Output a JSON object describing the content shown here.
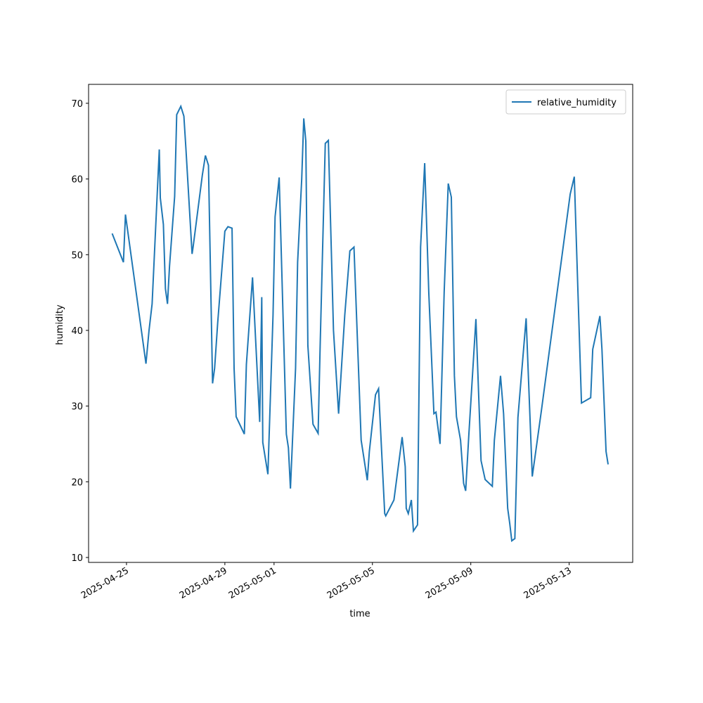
{
  "chart_data": {
    "type": "line",
    "xlabel": "time",
    "ylabel": "humidity",
    "x": [
      "2025-04-24T10:00",
      "2025-04-24T21:00",
      "2025-04-24T23:00",
      "2025-04-25T19:00",
      "2025-04-25T22:00",
      "2025-04-26T01:00",
      "2025-04-26T08:00",
      "2025-04-26T09:00",
      "2025-04-26T12:00",
      "2025-04-26T14:00",
      "2025-04-26T16:00",
      "2025-04-26T18:00",
      "2025-04-26T23:00",
      "2025-04-27T01:00",
      "2025-04-27T05:00",
      "2025-04-27T08:00",
      "2025-04-27T10:00",
      "2025-04-27T16:00",
      "2025-04-27T17:00",
      "2025-04-28T02:00",
      "2025-04-28T05:00",
      "2025-04-28T08:00",
      "2025-04-28T12:00",
      "2025-04-28T14:00",
      "2025-04-28T17:00",
      "2025-04-29T00:00",
      "2025-04-29T03:00",
      "2025-04-29T07:00",
      "2025-04-29T09:00",
      "2025-04-29T11:00",
      "2025-04-29T19:00",
      "2025-04-29T21:00",
      "2025-04-30T03:00",
      "2025-04-30T10:00",
      "2025-04-30T12:00",
      "2025-04-30T13:00",
      "2025-04-30T18:00",
      "2025-04-30T23:00",
      "2025-05-01T01:00",
      "2025-05-01T05:00",
      "2025-05-01T12:00",
      "2025-05-01T14:00",
      "2025-05-01T16:00",
      "2025-05-01T21:00",
      "2025-05-01T23:00",
      "2025-05-02T03:00",
      "2025-05-02T05:00",
      "2025-05-02T07:00",
      "2025-05-02T09:00",
      "2025-05-02T14:00",
      "2025-05-02T19:00",
      "2025-05-02T21:00",
      "2025-05-03T02:00",
      "2025-05-03T05:00",
      "2025-05-03T10:00",
      "2025-05-03T15:00",
      "2025-05-03T21:00",
      "2025-05-04T02:00",
      "2025-05-04T06:00",
      "2025-05-04T13:00",
      "2025-05-04T19:00",
      "2025-05-04T21:00",
      "2025-05-05T03:00",
      "2025-05-05T06:00",
      "2025-05-05T09:00",
      "2025-05-05T12:00",
      "2025-05-05T13:00",
      "2025-05-05T21:00",
      "2025-05-06T05:00",
      "2025-05-06T08:00",
      "2025-05-06T09:00",
      "2025-05-06T11:00",
      "2025-05-06T14:00",
      "2025-05-06T16:00",
      "2025-05-06T20:00",
      "2025-05-06T23:00",
      "2025-05-07T03:00",
      "2025-05-07T07:00",
      "2025-05-07T12:00",
      "2025-05-07T14:00",
      "2025-05-07T18:00",
      "2025-05-07T22:00",
      "2025-05-08T02:00",
      "2025-05-08T05:00",
      "2025-05-08T08:00",
      "2025-05-08T10:00",
      "2025-05-08T14:00",
      "2025-05-08T17:00",
      "2025-05-08T19:00",
      "2025-05-08T22:00",
      "2025-05-09T05:00",
      "2025-05-09T10:00",
      "2025-05-09T14:00",
      "2025-05-09T21:00",
      "2025-05-09T23:00",
      "2025-05-10T05:00",
      "2025-05-10T08:00",
      "2025-05-10T12:00",
      "2025-05-10T14:00",
      "2025-05-10T16:00",
      "2025-05-10T19:00",
      "2025-05-10T22:00",
      "2025-05-11T06:00",
      "2025-05-11T12:00",
      "2025-05-11T21:00",
      "2025-05-13T01:00",
      "2025-05-13T05:00",
      "2025-05-13T12:00",
      "2025-05-13T21:00",
      "2025-05-13T23:00",
      "2025-05-14T06:00",
      "2025-05-14T08:00",
      "2025-05-14T12:00",
      "2025-05-14T14:00"
    ],
    "series": [
      {
        "name": "relative_humidity",
        "color": "#1f77b4",
        "values": [
          52.8,
          49,
          55.3,
          35.6,
          40,
          43.5,
          63.9,
          57.5,
          54,
          45.5,
          43.5,
          48.5,
          57.7,
          68.5,
          69.6,
          68.3,
          64,
          50.1,
          51,
          60.5,
          63.1,
          61.8,
          33,
          35,
          41,
          53.1,
          53.7,
          53.5,
          35,
          28.6,
          26.3,
          35.5,
          47,
          27.9,
          44.4,
          25.2,
          21,
          42,
          55,
          60.2,
          26.3,
          24.5,
          19.1,
          35,
          49,
          60,
          68,
          65,
          38,
          27.6,
          26.4,
          38,
          64.7,
          65.1,
          40,
          29,
          42,
          50.5,
          51,
          25.5,
          20.2,
          24,
          31.5,
          32.3,
          24,
          15.8,
          15.5,
          17.6,
          25.9,
          22,
          16.5,
          15.8,
          17.6,
          13.5,
          14.3,
          51,
          62.1,
          45,
          29,
          29.2,
          25,
          45,
          59.4,
          57.6,
          34,
          28.6,
          25.5,
          19.8,
          18.8,
          26,
          41.5,
          22.8,
          20.3,
          19.4,
          25.5,
          34,
          29,
          16.5,
          14.5,
          12.2,
          12.5,
          28.5,
          41.6,
          20.7,
          29.5,
          58,
          60.3,
          30.4,
          31.1,
          37.5,
          41.9,
          37.5,
          24,
          22.3
        ]
      }
    ],
    "xlim": [
      "2025-04-23T11:00",
      "2025-05-15T14:00"
    ],
    "xticks": [
      "2025-04-25",
      "2025-04-29",
      "2025-05-01",
      "2025-05-05",
      "2025-05-09",
      "2025-05-13"
    ],
    "ylim": [
      9.35,
      72.5
    ],
    "yticks": [
      10,
      20,
      30,
      40,
      50,
      60,
      70
    ],
    "legend": "upper right",
    "grid": false
  }
}
